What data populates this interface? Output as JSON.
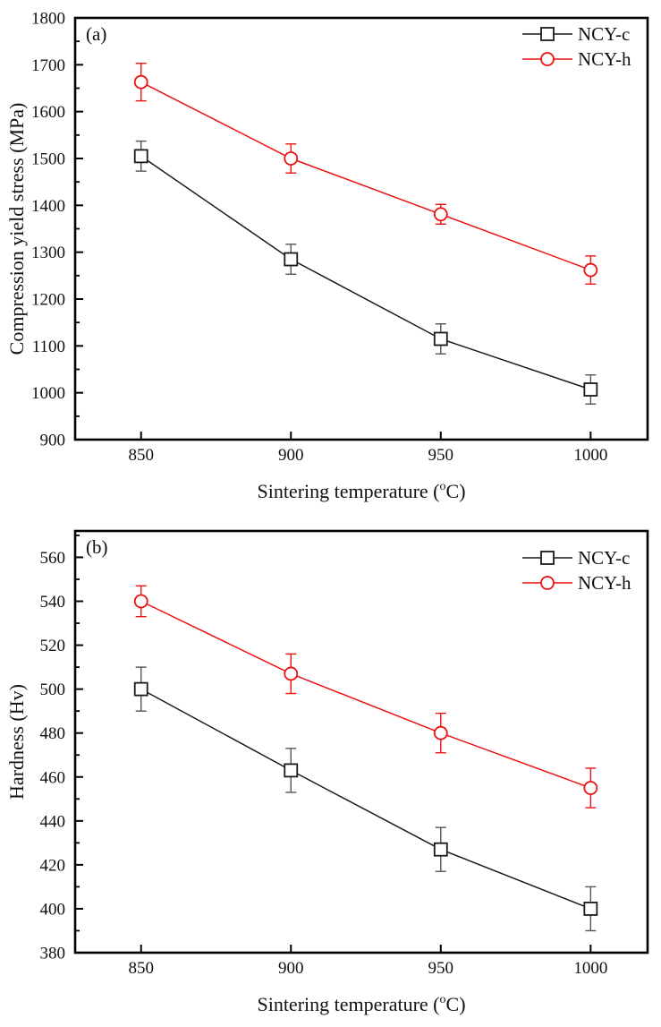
{
  "figure": {
    "background": "#ffffff",
    "text_color": "#111111"
  },
  "chart_data": [
    {
      "type": "line",
      "panel_label": "(a)",
      "title": "",
      "xlabel": "Sintering temperature (°C)",
      "ylabel": "Compression yield stress (MPa)",
      "x": [
        850,
        900,
        950,
        1000
      ],
      "xlim": [
        828,
        1019
      ],
      "xticks": [
        850,
        900,
        950,
        1000
      ],
      "ylim": [
        900,
        1800
      ],
      "ytick_major": 100,
      "ytick_minor": 50,
      "grid": false,
      "error_bars": true,
      "legend_position": "top-right-inside",
      "series": [
        {
          "name": "NCY-c",
          "marker": "square",
          "color": "#1a1a1a",
          "error_color": "#555555",
          "values": [
            1505,
            1285,
            1115,
            1007
          ],
          "errors": [
            32,
            32,
            32,
            31
          ]
        },
        {
          "name": "NCY-h",
          "marker": "circle",
          "color": "#ee1111",
          "error_color": "#ee1111",
          "values": [
            1663,
            1500,
            1381,
            1262
          ],
          "errors": [
            40,
            31,
            21,
            30
          ]
        }
      ]
    },
    {
      "type": "line",
      "panel_label": "(b)",
      "title": "",
      "xlabel": "Sintering temperature (°C)",
      "ylabel": "Hardness (Hv)",
      "x": [
        850,
        900,
        950,
        1000
      ],
      "xlim": [
        828,
        1019
      ],
      "xticks": [
        850,
        900,
        950,
        1000
      ],
      "ylim": [
        380,
        572
      ],
      "ytick_major": 20,
      "ytick_minor": 10,
      "grid": false,
      "error_bars": true,
      "legend_position": "top-right-inside",
      "series": [
        {
          "name": "NCY-c",
          "marker": "square",
          "color": "#1a1a1a",
          "error_color": "#555555",
          "values": [
            500,
            463,
            427,
            400
          ],
          "errors": [
            10,
            10,
            10,
            10
          ]
        },
        {
          "name": "NCY-h",
          "marker": "circle",
          "color": "#ee1111",
          "error_color": "#ee1111",
          "values": [
            540,
            507,
            480,
            455
          ],
          "errors": [
            7,
            9,
            9,
            9
          ]
        }
      ]
    }
  ]
}
